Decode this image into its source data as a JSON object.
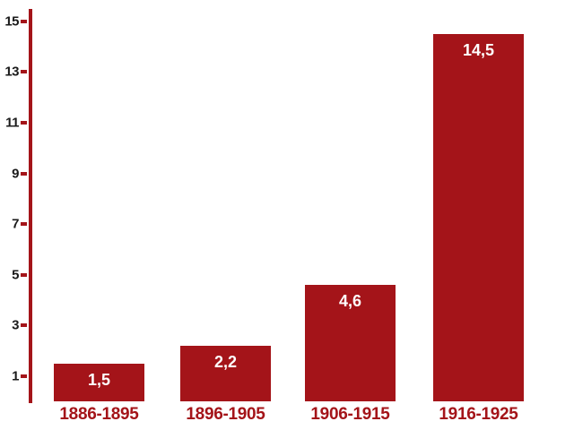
{
  "chart_data": {
    "type": "bar",
    "title": "",
    "xlabel": "",
    "ylabel": "",
    "categories": [
      "1886-1895",
      "1896-1905",
      "1906-1915",
      "1916-1925"
    ],
    "values": [
      1.5,
      2.2,
      4.6,
      14.5
    ],
    "value_labels": [
      "1,5",
      "2,2",
      "4,6",
      "14,5"
    ],
    "yticks": [
      1,
      3,
      5,
      7,
      9,
      11,
      13,
      15
    ],
    "ylim": [
      0,
      15.5
    ],
    "grid": false,
    "legend": false,
    "decimal_separator": ",",
    "colors": {
      "bar": "#A41419",
      "axis": "#A41419",
      "tick_dash": "#A41419",
      "y_tick_label": "#1A1A1A",
      "value_label_inside": "#FFFFFF",
      "category_label": "#A41419",
      "background": "#FFFFFF"
    }
  }
}
